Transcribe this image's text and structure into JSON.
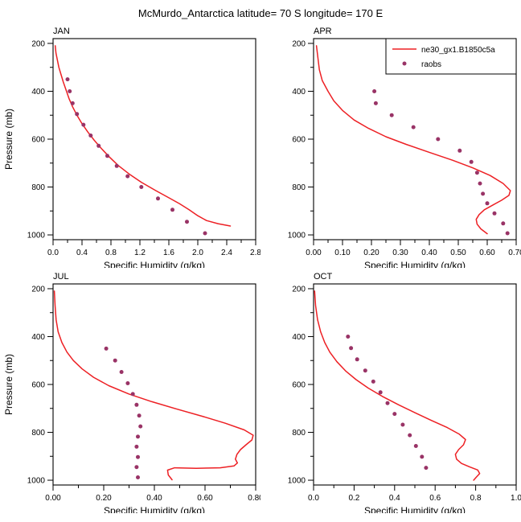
{
  "title": "McMurdo_Antarctica  latitude= 70 S  longitude= 170 E",
  "colors": {
    "model_line": "#ed2024",
    "raobs_dot": "#993366",
    "axis": "#000000",
    "background": "#ffffff"
  },
  "legend": {
    "entries": [
      "ne30_gx1.B1850c5a",
      "raobs"
    ],
    "position": "top-right",
    "panel": "APR"
  },
  "chart_data": [
    {
      "type": "line",
      "panel_label": "JAN",
      "xlabel": "Specific Humidity (g/kg)",
      "ylabel": "Pressure (mb)",
      "show_ylabel": true,
      "legend": false,
      "xlim": [
        0.0,
        2.8
      ],
      "xticks": [
        0.0,
        0.4,
        0.8,
        1.2,
        1.6,
        2.0,
        2.4,
        2.8
      ],
      "xtick_labels": [
        "0.0",
        "0.4",
        "0.8",
        "1.2",
        "1.6",
        "2.0",
        "2.4",
        "2.8"
      ],
      "ylim": [
        180,
        1020
      ],
      "y_inverted": true,
      "yticks": [
        200,
        400,
        600,
        800,
        1000
      ],
      "ytick_labels": [
        "200",
        "400",
        "600",
        "800",
        "1000"
      ],
      "grid": false,
      "series": [
        {
          "name": "ne30_gx1.B1850c5a",
          "kind": "line",
          "points": [
            [
              0.03,
              210
            ],
            [
              0.04,
              240
            ],
            [
              0.06,
              270
            ],
            [
              0.08,
              300
            ],
            [
              0.11,
              330
            ],
            [
              0.14,
              360
            ],
            [
              0.18,
              395
            ],
            [
              0.22,
              430
            ],
            [
              0.27,
              465
            ],
            [
              0.33,
              500
            ],
            [
              0.4,
              535
            ],
            [
              0.48,
              570
            ],
            [
              0.57,
              605
            ],
            [
              0.67,
              640
            ],
            [
              0.78,
              675
            ],
            [
              0.9,
              710
            ],
            [
              1.05,
              745
            ],
            [
              1.22,
              780
            ],
            [
              1.42,
              815
            ],
            [
              1.6,
              845
            ],
            [
              1.75,
              870
            ],
            [
              1.88,
              895
            ],
            [
              2.0,
              920
            ],
            [
              2.12,
              940
            ],
            [
              2.28,
              953
            ],
            [
              2.45,
              963
            ]
          ]
        },
        {
          "name": "raobs",
          "kind": "scatter",
          "points": [
            [
              0.2,
              350
            ],
            [
              0.23,
              400
            ],
            [
              0.27,
              450
            ],
            [
              0.33,
              495
            ],
            [
              0.42,
              540
            ],
            [
              0.52,
              585
            ],
            [
              0.63,
              628
            ],
            [
              0.75,
              670
            ],
            [
              0.88,
              712
            ],
            [
              1.03,
              755
            ],
            [
              1.22,
              800
            ],
            [
              1.45,
              848
            ],
            [
              1.65,
              895
            ],
            [
              1.85,
              945
            ],
            [
              2.1,
              993
            ]
          ]
        }
      ]
    },
    {
      "type": "line",
      "panel_label": "APR",
      "xlabel": "Specific Humidity (g/kg)",
      "ylabel": "Pressure (mb)",
      "show_ylabel": false,
      "legend": true,
      "xlim": [
        0.0,
        0.7
      ],
      "xticks": [
        0.0,
        0.1,
        0.2,
        0.3,
        0.4,
        0.5,
        0.6,
        0.7
      ],
      "xtick_labels": [
        "0.00",
        "0.10",
        "0.20",
        "0.30",
        "0.40",
        "0.50",
        "0.60",
        "0.70"
      ],
      "ylim": [
        180,
        1020
      ],
      "y_inverted": true,
      "yticks": [
        200,
        400,
        600,
        800,
        1000
      ],
      "ytick_labels": [
        "200",
        "400",
        "600",
        "800",
        "1000"
      ],
      "grid": false,
      "series": [
        {
          "name": "ne30_gx1.B1850c5a",
          "kind": "line",
          "points": [
            [
              0.01,
              210
            ],
            [
              0.015,
              260
            ],
            [
              0.02,
              310
            ],
            [
              0.03,
              355
            ],
            [
              0.05,
              400
            ],
            [
              0.07,
              440
            ],
            [
              0.1,
              480
            ],
            [
              0.14,
              520
            ],
            [
              0.19,
              555
            ],
            [
              0.25,
              590
            ],
            [
              0.32,
              622
            ],
            [
              0.4,
              655
            ],
            [
              0.48,
              688
            ],
            [
              0.55,
              720
            ],
            [
              0.61,
              752
            ],
            [
              0.655,
              785
            ],
            [
              0.68,
              815
            ],
            [
              0.675,
              835
            ],
            [
              0.65,
              855
            ],
            [
              0.62,
              875
            ],
            [
              0.59,
              895
            ],
            [
              0.572,
              915
            ],
            [
              0.562,
              935
            ],
            [
              0.565,
              955
            ],
            [
              0.578,
              975
            ],
            [
              0.6,
              995
            ]
          ]
        },
        {
          "name": "raobs",
          "kind": "scatter",
          "points": [
            [
              0.21,
              400
            ],
            [
              0.215,
              450
            ],
            [
              0.27,
              500
            ],
            [
              0.345,
              550
            ],
            [
              0.43,
              600
            ],
            [
              0.505,
              648
            ],
            [
              0.545,
              695
            ],
            [
              0.565,
              740
            ],
            [
              0.575,
              785
            ],
            [
              0.585,
              828
            ],
            [
              0.6,
              868
            ],
            [
              0.625,
              910
            ],
            [
              0.655,
              952
            ],
            [
              0.67,
              993
            ]
          ]
        }
      ]
    },
    {
      "type": "line",
      "panel_label": "JUL",
      "xlabel": "Specific Humidity (g/kg)",
      "ylabel": "Pressure (mb)",
      "show_ylabel": true,
      "legend": false,
      "xlim": [
        0.0,
        0.8
      ],
      "xticks": [
        0.0,
        0.2,
        0.4,
        0.6,
        0.8
      ],
      "xtick_labels": [
        "0.00",
        "0.20",
        "0.40",
        "0.60",
        "0.80"
      ],
      "ylim": [
        180,
        1020
      ],
      "y_inverted": true,
      "yticks": [
        200,
        400,
        600,
        800,
        1000
      ],
      "ytick_labels": [
        "200",
        "400",
        "600",
        "800",
        "1000"
      ],
      "grid": false,
      "series": [
        {
          "name": "ne30_gx1.B1850c5a",
          "kind": "line",
          "points": [
            [
              0.005,
              210
            ],
            [
              0.008,
              270
            ],
            [
              0.012,
              330
            ],
            [
              0.02,
              380
            ],
            [
              0.035,
              425
            ],
            [
              0.055,
              465
            ],
            [
              0.08,
              500
            ],
            [
              0.115,
              535
            ],
            [
              0.16,
              570
            ],
            [
              0.22,
              605
            ],
            [
              0.3,
              640
            ],
            [
              0.39,
              672
            ],
            [
              0.49,
              703
            ],
            [
              0.59,
              733
            ],
            [
              0.68,
              762
            ],
            [
              0.755,
              790
            ],
            [
              0.79,
              812
            ],
            [
              0.785,
              832
            ],
            [
              0.762,
              852
            ],
            [
              0.74,
              872
            ],
            [
              0.726,
              892
            ],
            [
              0.72,
              912
            ],
            [
              0.728,
              928
            ],
            [
              0.715,
              940
            ],
            [
              0.66,
              948
            ],
            [
              0.565,
              950
            ],
            [
              0.48,
              948
            ],
            [
              0.452,
              958
            ],
            [
              0.455,
              978
            ],
            [
              0.47,
              998
            ]
          ]
        },
        {
          "name": "raobs",
          "kind": "scatter",
          "points": [
            [
              0.21,
              450
            ],
            [
              0.245,
              500
            ],
            [
              0.27,
              548
            ],
            [
              0.295,
              595
            ],
            [
              0.315,
              640
            ],
            [
              0.33,
              685
            ],
            [
              0.34,
              730
            ],
            [
              0.345,
              775
            ],
            [
              0.335,
              818
            ],
            [
              0.33,
              860
            ],
            [
              0.335,
              903
            ],
            [
              0.33,
              945
            ],
            [
              0.335,
              988
            ]
          ]
        }
      ]
    },
    {
      "type": "line",
      "panel_label": "OCT",
      "xlabel": "Specific Humidity (g/kg)",
      "ylabel": "Pressure (mb)",
      "show_ylabel": false,
      "legend": false,
      "xlim": [
        0.0,
        1.0
      ],
      "xticks": [
        0.0,
        0.2,
        0.4,
        0.6,
        0.8,
        1.0
      ],
      "xtick_labels": [
        "0.0",
        "0.2",
        "0.4",
        "0.6",
        "0.8",
        "1.0"
      ],
      "ylim": [
        180,
        1020
      ],
      "y_inverted": true,
      "yticks": [
        200,
        400,
        600,
        800,
        1000
      ],
      "ytick_labels": [
        "200",
        "400",
        "600",
        "800",
        "1000"
      ],
      "grid": false,
      "series": [
        {
          "name": "ne30_gx1.B1850c5a",
          "kind": "line",
          "points": [
            [
              0.005,
              210
            ],
            [
              0.01,
              270
            ],
            [
              0.02,
              330
            ],
            [
              0.035,
              380
            ],
            [
              0.055,
              425
            ],
            [
              0.08,
              465
            ],
            [
              0.115,
              505
            ],
            [
              0.16,
              545
            ],
            [
              0.21,
              580
            ],
            [
              0.27,
              615
            ],
            [
              0.34,
              650
            ],
            [
              0.42,
              685
            ],
            [
              0.5,
              718
            ],
            [
              0.58,
              750
            ],
            [
              0.66,
              780
            ],
            [
              0.72,
              808
            ],
            [
              0.75,
              830
            ],
            [
              0.74,
              852
            ],
            [
              0.716,
              872
            ],
            [
              0.7,
              892
            ],
            [
              0.706,
              912
            ],
            [
              0.73,
              930
            ],
            [
              0.77,
              944
            ],
            [
              0.81,
              957
            ],
            [
              0.82,
              972
            ],
            [
              0.803,
              987
            ],
            [
              0.79,
              1000
            ]
          ]
        },
        {
          "name": "raobs",
          "kind": "scatter",
          "points": [
            [
              0.17,
              400
            ],
            [
              0.185,
              448
            ],
            [
              0.215,
              495
            ],
            [
              0.255,
              542
            ],
            [
              0.295,
              588
            ],
            [
              0.33,
              633
            ],
            [
              0.365,
              678
            ],
            [
              0.4,
              723
            ],
            [
              0.44,
              768
            ],
            [
              0.475,
              812
            ],
            [
              0.505,
              857
            ],
            [
              0.535,
              902
            ],
            [
              0.555,
              948
            ]
          ]
        }
      ]
    }
  ]
}
